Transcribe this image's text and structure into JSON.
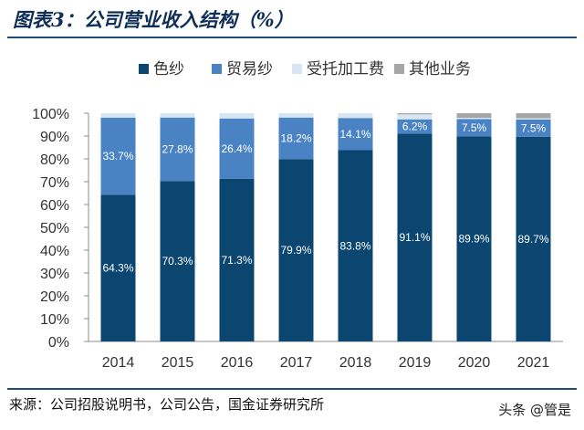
{
  "header": {
    "title": "图表3：公司营业收入结构（%）"
  },
  "footer": {
    "source": "来源：公司招股说明书，公司公告，国金证券研究所",
    "watermark": "头条 @管是"
  },
  "chart_data": {
    "type": "bar",
    "stacked": true,
    "categories": [
      "2014",
      "2015",
      "2016",
      "2017",
      "2018",
      "2019",
      "2020",
      "2021"
    ],
    "series": [
      {
        "name": "色纱",
        "color": "#0b4670",
        "values": [
          64.3,
          70.3,
          71.3,
          79.9,
          83.8,
          91.1,
          89.9,
          89.7
        ],
        "labels": [
          "64.3%",
          "70.3%",
          "71.3%",
          "79.9%",
          "83.8%",
          "91.1%",
          "89.9%",
          "89.7%"
        ]
      },
      {
        "name": "贸易纱",
        "color": "#4a83c4",
        "values": [
          33.7,
          27.8,
          26.4,
          18.2,
          14.1,
          6.2,
          7.5,
          7.5
        ],
        "labels": [
          "33.7%",
          "27.8%",
          "26.4%",
          "18.2%",
          "14.1%",
          "6.2%",
          "7.5%",
          "7.5%"
        ]
      },
      {
        "name": "受托加工费",
        "color": "#d6e6f4",
        "values": [
          2.0,
          1.9,
          2.3,
          1.9,
          2.1,
          2.2,
          0.6,
          0.6
        ]
      },
      {
        "name": "其他业务",
        "color": "#a6a6a6",
        "values": [
          0.0,
          0.0,
          0.0,
          0.0,
          0.0,
          0.5,
          2.0,
          2.2
        ]
      }
    ],
    "y_tick_labels": [
      "0%",
      "10%",
      "20%",
      "30%",
      "40%",
      "50%",
      "60%",
      "70%",
      "80%",
      "90%",
      "100%"
    ],
    "ylim": [
      0,
      100
    ],
    "legend": "top"
  }
}
